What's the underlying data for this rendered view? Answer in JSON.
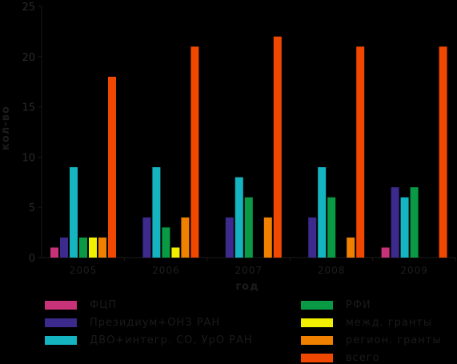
{
  "chart_data": {
    "type": "bar",
    "title": "",
    "xlabel": "год",
    "ylabel": "кол-во",
    "ylim": [
      0,
      25
    ],
    "yticks": [
      "0",
      "5",
      "10",
      "15",
      "20",
      "25"
    ],
    "categories": [
      "2005",
      "2006",
      "2007",
      "2008",
      "2009"
    ],
    "series": [
      {
        "name": "ФЦП",
        "color": "#c83278",
        "values": [
          1,
          0,
          0,
          0,
          1
        ]
      },
      {
        "name": "Президиум+ОНЗ РАН",
        "color": "#3c2a8c",
        "values": [
          2,
          4,
          4,
          4,
          7
        ]
      },
      {
        "name": "ДВО+интегр. СО, УрО РАН",
        "color": "#14b4c0",
        "values": [
          9,
          9,
          8,
          9,
          6
        ]
      },
      {
        "name": "РФИ",
        "color": "#0a9a46",
        "values": [
          2,
          3,
          6,
          6,
          7
        ]
      },
      {
        "name": "межд. гранты",
        "color": "#f0f000",
        "values": [
          2,
          1,
          0,
          0,
          0
        ]
      },
      {
        "name": "регион. гранты",
        "color": "#f08000",
        "values": [
          2,
          4,
          4,
          2,
          0
        ]
      },
      {
        "name": "всего",
        "color": "#f04800",
        "values": [
          18,
          21,
          22,
          21,
          21
        ]
      }
    ],
    "legend_position": "bottom",
    "grid": false
  }
}
